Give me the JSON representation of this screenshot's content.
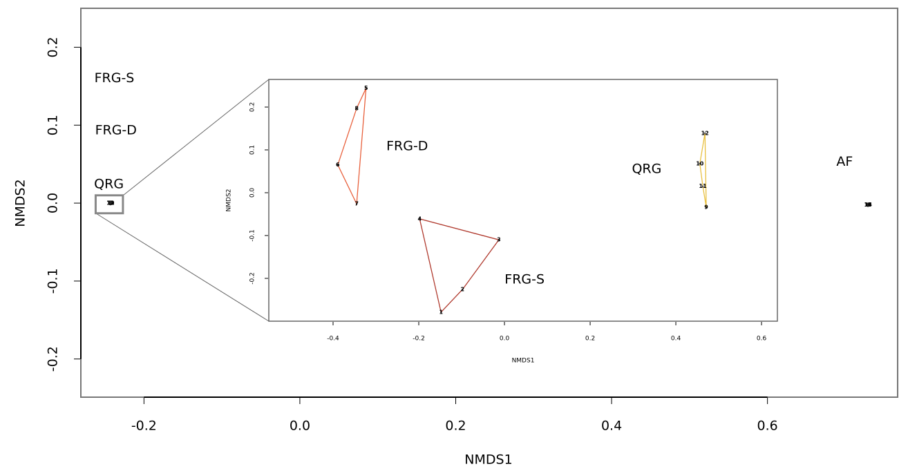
{
  "chart_data": [
    {
      "type": "scatter",
      "x_label": "NMDS1",
      "y_label": "NMDS2",
      "xlim": [
        -0.281,
        0.767
      ],
      "ylim": [
        -0.249,
        0.25
      ],
      "xticks": [
        -0.2,
        {
          "value": 0,
          "label": "0.0"
        },
        0.2,
        0.4,
        0.6
      ],
      "yticks": [
        -0.2,
        -0.1,
        {
          "value": 0,
          "label": "0.0"
        },
        0.1,
        0.2
      ],
      "points": {
        "x": [
          -0.243,
          -0.243,
          -0.243,
          -0.243,
          -0.243,
          -0.243,
          -0.243,
          -0.243,
          -0.243,
          -0.243,
          -0.243,
          -0.243,
          0.729,
          0.729,
          0.729,
          0.729
        ],
        "y": [
          0,
          0,
          0,
          0,
          0,
          0,
          0,
          0,
          0,
          0,
          0,
          0,
          -0.002,
          -0.002,
          -0.002,
          -0.002
        ],
        "labels": [
          "1",
          "2",
          "3",
          "4",
          "5",
          "6",
          "7",
          "8",
          "9",
          "10",
          "11",
          "12",
          "13",
          "14",
          "15",
          "16"
        ]
      },
      "annotations": [
        {
          "text": "FRG-S",
          "x": -0.238,
          "y": 0.16
        },
        {
          "text": "FRG-D",
          "x": -0.236,
          "y": 0.093
        },
        {
          "text": "QRG",
          "x": -0.245,
          "y": 0.024
        },
        {
          "text": "AF",
          "x": 0.699,
          "y": 0.053
        }
      ],
      "zoom_box": {
        "xlim": [
          -0.262,
          -0.227
        ],
        "ylim": [
          -0.013,
          0.01
        ]
      }
    },
    {
      "type": "scatter",
      "x_label": "NMDS1",
      "y_label": "NMDS2",
      "xlim": [
        -0.55,
        0.637
      ],
      "ylim": [
        -0.3,
        0.2645
      ],
      "xticks": [
        -0.4,
        -0.2,
        {
          "value": 0,
          "label": "0.0"
        },
        0.2,
        0.4,
        0.6
      ],
      "yticks": [
        -0.2,
        -0.1,
        {
          "value": 0,
          "label": "0.0"
        },
        0.1,
        0.2
      ],
      "series": [
        {
          "name": "FRG-S",
          "color": "#b03a2e",
          "name_x": 0.047,
          "name_y": -0.203,
          "x": [
            -0.148,
            -0.098,
            -0.013,
            -0.198
          ],
          "y": [
            -0.279,
            -0.226,
            -0.11,
            -0.061
          ],
          "labels": [
            "1",
            "2",
            "3",
            "4"
          ]
        },
        {
          "name": "FRG-D",
          "color": "#e8603c",
          "name_x": -0.227,
          "name_y": 0.108,
          "x": [
            -0.323,
            -0.345,
            -0.389,
            -0.345
          ],
          "y": [
            0.244,
            0.197,
            0.065,
            -0.026
          ],
          "labels": [
            "5",
            "8",
            "6",
            "7"
          ]
        },
        {
          "name": "QRG",
          "color": "#e8c040",
          "name_x": 0.332,
          "name_y": 0.055,
          "x": [
            0.468,
            0.456,
            0.463,
            0.471
          ],
          "y": [
            0.139,
            0.068,
            0.015,
            -0.034
          ],
          "labels": [
            "12",
            "10",
            "11",
            "9"
          ]
        }
      ]
    }
  ]
}
